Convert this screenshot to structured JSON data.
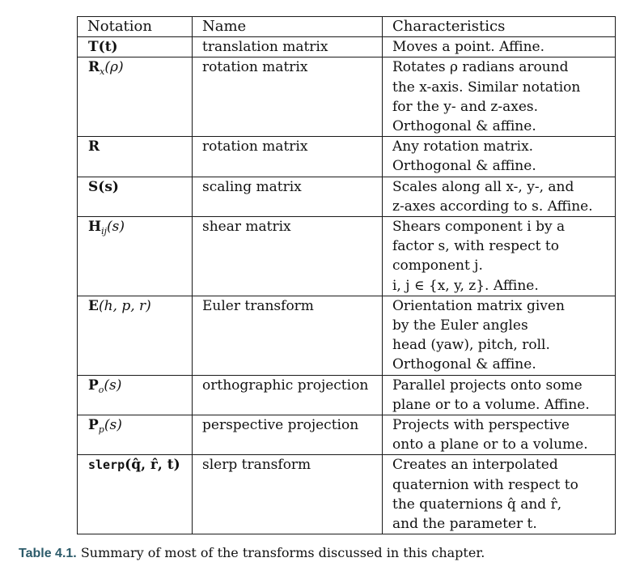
{
  "headers": [
    "Notation",
    "Name",
    "Characteristics"
  ],
  "rows": [
    {
      "name": "translation matrix",
      "char": [
        "Moves a point. Affine."
      ]
    },
    {
      "name": "rotation matrix",
      "char": [
        "Rotates ρ radians around",
        "the x-axis. Similar notation",
        "for the y- and z-axes.",
        "Orthogonal & affine."
      ]
    },
    {
      "name": "rotation matrix",
      "char": [
        "Any rotation matrix.",
        "Orthogonal & affine."
      ]
    },
    {
      "name": "scaling matrix",
      "char": [
        "Scales along all x-, y-, and",
        "z-axes according to s. Affine."
      ]
    },
    {
      "name": "shear matrix",
      "char": [
        "Shears component i by a",
        "factor s, with respect to",
        "component j.",
        "i, j ∈ {x, y, z}. Affine."
      ]
    },
    {
      "name": "Euler transform",
      "char": [
        "Orientation matrix given",
        "by the Euler angles",
        "head (yaw), pitch, roll.",
        "Orthogonal & affine."
      ]
    },
    {
      "name": "orthographic projection",
      "char": [
        "Parallel projects onto some",
        "plane or to a volume. Affine."
      ]
    },
    {
      "name": "perspective projection",
      "char": [
        "Projects with perspective",
        "onto a plane or to a volume."
      ]
    },
    {
      "name": "slerp transform",
      "char": [
        "Creates an interpolated",
        "quaternion with respect to",
        "the quaternions q̂ and r̂,",
        "and the parameter t."
      ]
    }
  ],
  "notation": {
    "r0": {
      "main": "T(t)"
    },
    "r1": {
      "main": "R",
      "sub": "x",
      "arg": "(ρ)"
    },
    "r2": {
      "main": "R"
    },
    "r3": {
      "main": "S(s)"
    },
    "r4": {
      "main": "H",
      "sub": "ij",
      "arg": "(s)"
    },
    "r5": {
      "main": "E",
      "arg": "(h, p, r)"
    },
    "r6": {
      "main": "P",
      "sub": "o",
      "arg": "(s)"
    },
    "r7": {
      "main": "P",
      "sub": "p",
      "arg": "(s)"
    },
    "r8": {
      "fn": "slerp",
      "args": "(q̂, r̂, t)"
    }
  },
  "caption": {
    "label": "Table 4.1.",
    "text": "Summary of most of the transforms discussed in this chapter."
  }
}
